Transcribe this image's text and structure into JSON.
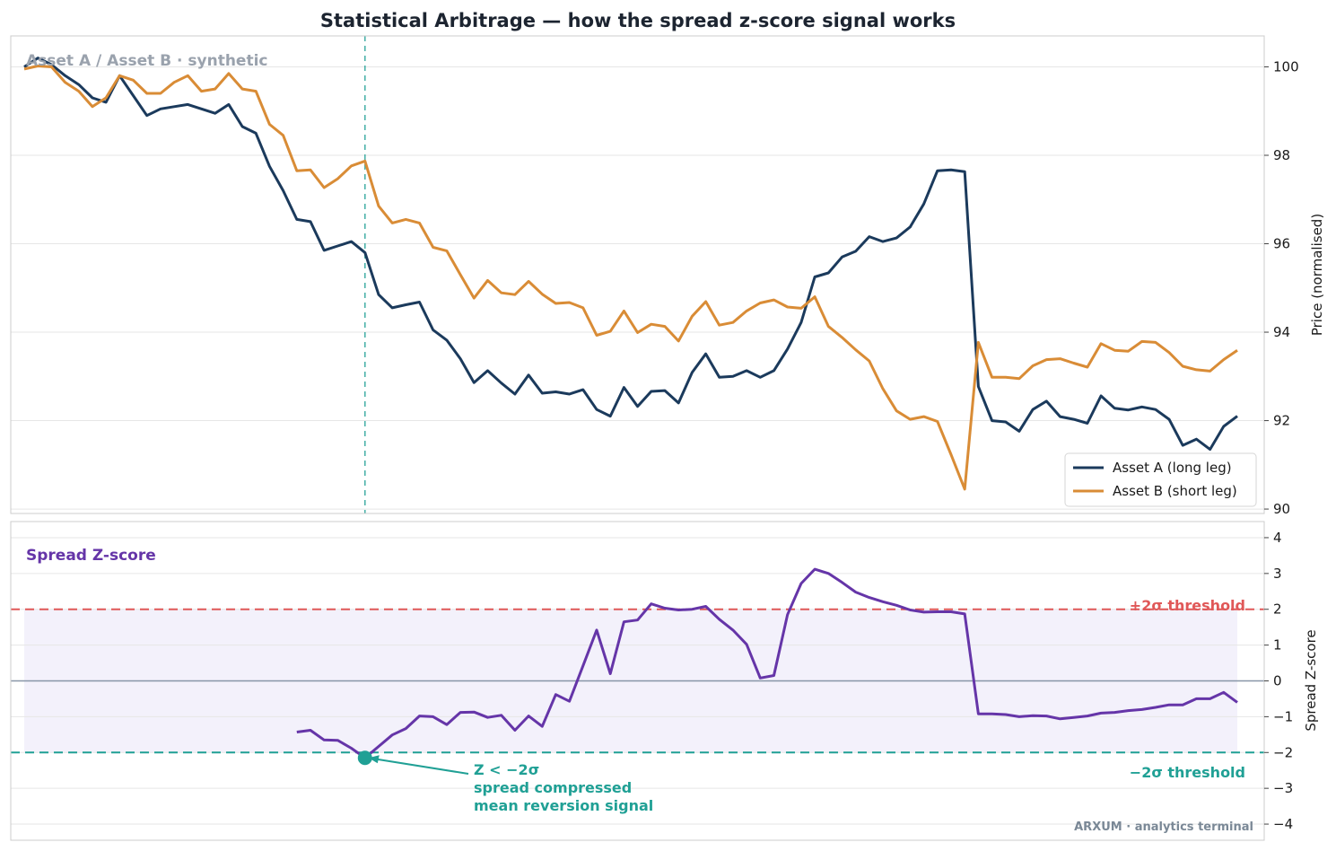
{
  "chart_data": [
    {
      "type": "line",
      "title": "Statistical Arbitrage — how the spread z-score signal works",
      "panel_label": "Asset A / Asset B · synthetic",
      "ylabel": "Price (normalised)",
      "ylim": [
        89.9,
        100.7
      ],
      "yticks": [
        90,
        92,
        94,
        96,
        98,
        100
      ],
      "grid": true,
      "legend_position": "bottom-right",
      "x": [
        0,
        1,
        2,
        3,
        4,
        5,
        6,
        7,
        8,
        9,
        10,
        11,
        12,
        13,
        14,
        15,
        16,
        17,
        18,
        19,
        20,
        21,
        22,
        23,
        24,
        25,
        26,
        27,
        28,
        29,
        30,
        31,
        32,
        33,
        34,
        35,
        36,
        37,
        38,
        39,
        40,
        41,
        42,
        43,
        44,
        45,
        46,
        47,
        48,
        49,
        50,
        51,
        52,
        53,
        54,
        55,
        56,
        57,
        58,
        59,
        60,
        61,
        62,
        63,
        64,
        65,
        66,
        67,
        68,
        69,
        70,
        71,
        72,
        73,
        74,
        75,
        76,
        77,
        78,
        79,
        80,
        81,
        82,
        83,
        84,
        85,
        86,
        87,
        88,
        89
      ],
      "signal_index": 25,
      "series": [
        {
          "name": "Asset A (long leg)",
          "color": "#1b3a5c",
          "values": [
            100.0,
            100.2,
            100.05,
            99.8,
            99.6,
            99.3,
            99.2,
            99.8,
            99.35,
            98.9,
            99.05,
            99.1,
            99.15,
            99.05,
            98.95,
            99.15,
            98.65,
            98.5,
            97.75,
            97.2,
            96.55,
            96.5,
            95.85,
            95.95,
            96.05,
            95.8,
            94.85,
            94.55,
            94.62,
            94.68,
            94.05,
            93.82,
            93.4,
            92.86,
            93.13,
            92.85,
            92.6,
            93.03,
            92.62,
            92.65,
            92.6,
            92.7,
            92.25,
            92.1,
            92.75,
            92.32,
            92.66,
            92.68,
            92.4,
            93.09,
            93.51,
            92.98,
            93.0,
            93.13,
            92.98,
            93.13,
            93.62,
            94.22,
            95.25,
            95.34,
            95.7,
            95.83,
            96.16,
            96.05,
            96.13,
            96.38,
            96.9,
            97.65,
            97.67,
            97.63,
            92.77,
            92.0,
            91.97,
            91.76,
            92.25,
            92.44,
            92.09,
            92.03,
            91.94,
            92.56,
            92.28,
            92.24,
            92.31,
            92.25,
            92.03,
            91.44,
            91.58,
            91.35,
            91.87,
            92.1
          ]
        },
        {
          "name": "Asset B (short leg)",
          "color": "#d98c36",
          "values": [
            99.95,
            100.02,
            100.0,
            99.65,
            99.45,
            99.1,
            99.3,
            99.8,
            99.7,
            99.4,
            99.4,
            99.65,
            99.8,
            99.45,
            99.5,
            99.85,
            99.5,
            99.45,
            98.7,
            98.45,
            97.65,
            97.67,
            97.27,
            97.47,
            97.76,
            97.87,
            96.85,
            96.47,
            96.55,
            96.47,
            95.92,
            95.84,
            95.3,
            94.77,
            95.17,
            94.89,
            94.85,
            95.15,
            94.86,
            94.65,
            94.67,
            94.55,
            93.93,
            94.02,
            94.48,
            93.99,
            94.18,
            94.13,
            93.8,
            94.36,
            94.69,
            94.16,
            94.22,
            94.48,
            94.66,
            94.73,
            94.57,
            94.54,
            94.8,
            94.13,
            93.88,
            93.6,
            93.35,
            92.72,
            92.22,
            92.03,
            92.09,
            91.98,
            91.23,
            90.45,
            93.77,
            92.98,
            92.98,
            92.95,
            93.24,
            93.38,
            93.4,
            93.3,
            93.21,
            93.74,
            93.59,
            93.57,
            93.79,
            93.77,
            93.54,
            93.23,
            93.15,
            93.12,
            93.38,
            93.59
          ]
        }
      ]
    },
    {
      "type": "line",
      "panel_label": "Spread Z-score",
      "ylabel": "Spread Z-score",
      "ylim": [
        -4.45,
        4.45
      ],
      "yticks": [
        -4,
        -3,
        -2,
        -1,
        0,
        1,
        2,
        3,
        4
      ],
      "grid": true,
      "thresholds": [
        {
          "name": "+2σ threshold",
          "value": 2,
          "color": "#e05858"
        },
        {
          "name": "−2σ threshold",
          "value": -2,
          "color": "#20a095"
        }
      ],
      "band": {
        "from": -2,
        "to": 2,
        "color": "#efecfa"
      },
      "series": [
        {
          "name": "Spread Z-score",
          "color": "#6535a8",
          "x": [
            20,
            21,
            22,
            23,
            24,
            25,
            26,
            27,
            28,
            29,
            30,
            31,
            32,
            33,
            34,
            35,
            36,
            37,
            38,
            39,
            40,
            41,
            42,
            43,
            44,
            45,
            46,
            47,
            48,
            49,
            50,
            51,
            52,
            53,
            54,
            55,
            56,
            57,
            58,
            59,
            60,
            61,
            62,
            63,
            64,
            65,
            66,
            67,
            68,
            69,
            70,
            71,
            72,
            73,
            74,
            75,
            76,
            77,
            78,
            79,
            80,
            81,
            82,
            83,
            84,
            85,
            86,
            87,
            88,
            89
          ],
          "values": [
            -1.43,
            -1.38,
            -1.65,
            -1.66,
            -1.88,
            -2.15,
            -1.83,
            -1.51,
            -1.33,
            -0.98,
            -1.0,
            -1.22,
            -0.88,
            -0.87,
            -1.02,
            -0.96,
            -1.38,
            -0.98,
            -1.27,
            -0.38,
            -0.57,
            0.42,
            1.42,
            0.2,
            1.65,
            1.7,
            2.15,
            2.03,
            1.98,
            2.0,
            2.08,
            1.72,
            1.42,
            1.02,
            0.08,
            0.15,
            1.85,
            2.72,
            3.12,
            3.0,
            2.75,
            2.48,
            2.33,
            2.21,
            2.11,
            1.98,
            1.92,
            1.93,
            1.93,
            1.87,
            -0.92,
            -0.92,
            -0.94,
            -1.0,
            -0.97,
            -0.98,
            -1.06,
            -1.02,
            -0.98,
            -0.9,
            -0.88,
            -0.83,
            -0.8,
            -0.74,
            -0.67,
            -0.67,
            -0.5,
            -0.5,
            -0.32,
            -0.6
          ]
        }
      ],
      "annotation": {
        "x": 25,
        "y": -2.15,
        "lines": [
          "Z < −2σ",
          "spread compressed",
          "mean reversion signal"
        ]
      },
      "footer": "ARXUM · analytics terminal"
    }
  ],
  "colors": {
    "grid": "#e6e6e6",
    "frame": "#cccccc",
    "zero_line": "#8896a8",
    "signal_line": "#20a095",
    "panel_label_top": "#9aa2ad",
    "panel_label_bottom": "#6535a8",
    "footer": "#7a8896"
  }
}
